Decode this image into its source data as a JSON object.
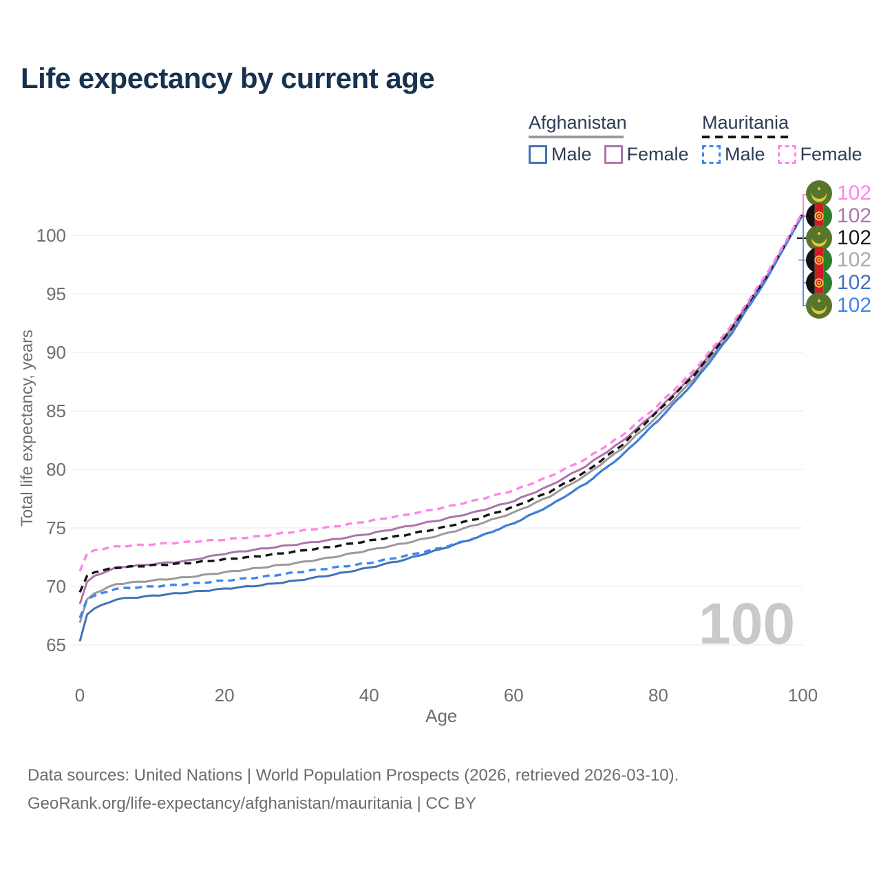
{
  "title": "Life expectancy by current age",
  "legend": {
    "groups": [
      {
        "label": "Afghanistan",
        "line_style": "solid"
      },
      {
        "label": "Mauritania",
        "line_style": "dashed"
      }
    ],
    "items": [
      {
        "label": "Male",
        "country": "Afghanistan",
        "color": "#4272b8",
        "dashed": false
      },
      {
        "label": "Female",
        "country": "Afghanistan",
        "color": "#ad74ab",
        "dashed": false
      },
      {
        "label": "Male",
        "country": "Mauritania",
        "color": "#3f86f0",
        "dashed": true
      },
      {
        "label": "Female",
        "country": "Mauritania",
        "color": "#ff85e8",
        "dashed": true
      }
    ]
  },
  "watermark": {
    "value": "100"
  },
  "footer": {
    "line1": "Data sources: United Nations | World Population Prospects (2026, retrieved 2026-03-10).",
    "line2": "GeoRank.org/life-expectancy/afghanistan/mauritania | CC BY"
  },
  "chart_data": {
    "type": "line",
    "title": "Life expectancy by current age",
    "xlabel": "Age",
    "ylabel": "Total life expectancy, years",
    "x_ticks": [
      0,
      20,
      40,
      60,
      80,
      100
    ],
    "y_ticks": [
      65,
      70,
      75,
      80,
      85,
      90,
      95,
      100
    ],
    "xlim": [
      0,
      100
    ],
    "ylim": [
      65,
      102
    ],
    "grid": "horizontal",
    "legend_position": "top-right",
    "x": [
      0,
      1,
      2,
      5,
      10,
      15,
      20,
      25,
      30,
      35,
      40,
      45,
      50,
      55,
      60,
      65,
      70,
      75,
      80,
      85,
      90,
      95,
      100
    ],
    "series": [
      {
        "key": "afghanistan-both",
        "name": "Afghanistan Both sexes",
        "color": "#9a9a9a",
        "dashed": false,
        "values": [
          66.9,
          68.9,
          69.4,
          70.2,
          70.5,
          70.8,
          71.2,
          71.6,
          72.0,
          72.5,
          73.1,
          73.7,
          74.4,
          75.3,
          76.3,
          77.7,
          79.5,
          81.8,
          84.6,
          87.8,
          91.7,
          96.4,
          101.8
        ]
      },
      {
        "key": "afghanistan-male",
        "name": "Afghanistan Male",
        "color": "#4272b8",
        "dashed": false,
        "values": [
          65.3,
          67.6,
          68.1,
          68.9,
          69.2,
          69.5,
          69.8,
          70.1,
          70.5,
          71.0,
          71.6,
          72.3,
          73.2,
          74.2,
          75.4,
          76.9,
          78.8,
          81.2,
          84.2,
          87.5,
          91.5,
          96.3,
          101.8
        ]
      },
      {
        "key": "afghanistan-female",
        "name": "Afghanistan Female",
        "color": "#ad74ab",
        "dashed": false,
        "values": [
          68.5,
          70.4,
          70.9,
          71.6,
          71.9,
          72.2,
          72.8,
          73.2,
          73.6,
          74.0,
          74.5,
          75.1,
          75.7,
          76.4,
          77.3,
          78.6,
          80.3,
          82.4,
          85.1,
          88.2,
          92.0,
          96.5,
          101.8
        ]
      },
      {
        "key": "mauritania-both",
        "name": "Mauritania Both sexes",
        "color": "#141414",
        "dashed": true,
        "values": [
          69.5,
          70.9,
          71.2,
          71.6,
          71.8,
          72.0,
          72.3,
          72.6,
          73.0,
          73.4,
          73.9,
          74.4,
          75.0,
          75.8,
          76.8,
          78.1,
          79.8,
          82.1,
          85.0,
          88.1,
          91.9,
          96.5,
          101.9
        ]
      },
      {
        "key": "mauritania-male",
        "name": "Mauritania Male",
        "color": "#3f86f0",
        "dashed": true,
        "values": [
          67.3,
          68.9,
          69.2,
          69.8,
          70.0,
          70.2,
          70.5,
          70.8,
          71.2,
          71.6,
          72.0,
          72.6,
          73.3,
          74.2,
          75.4,
          76.9,
          78.8,
          81.2,
          84.2,
          87.5,
          91.5,
          96.3,
          101.8
        ]
      },
      {
        "key": "mauritania-female",
        "name": "Mauritania Female",
        "color": "#ff85e8",
        "dashed": true,
        "values": [
          71.3,
          72.8,
          73.1,
          73.4,
          73.6,
          73.8,
          74.0,
          74.3,
          74.7,
          75.1,
          75.6,
          76.1,
          76.7,
          77.4,
          78.2,
          79.4,
          80.9,
          82.9,
          85.5,
          88.5,
          92.2,
          96.7,
          102.0
        ]
      }
    ],
    "end_labels": [
      {
        "series": "mauritania-female",
        "flag": "mauritania",
        "value": "102",
        "color": "#ff85e8"
      },
      {
        "series": "afghanistan-female",
        "flag": "afghanistan",
        "value": "102",
        "color": "#ad74ab"
      },
      {
        "series": "mauritania-both",
        "flag": "mauritania",
        "value": "102",
        "color": "#1a1a1a"
      },
      {
        "series": "afghanistan-both",
        "flag": "afghanistan",
        "value": "102",
        "color": "#ababab"
      },
      {
        "series": "afghanistan-male",
        "flag": "afghanistan",
        "value": "102",
        "color": "#4272c8"
      },
      {
        "series": "mauritania-male",
        "flag": "mauritania",
        "value": "102",
        "color": "#3f86f0"
      }
    ]
  }
}
